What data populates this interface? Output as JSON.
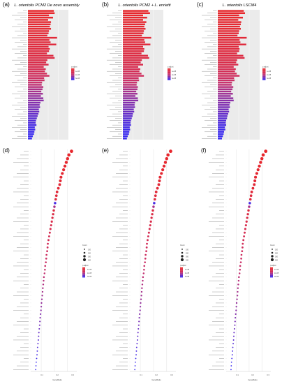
{
  "chart_data": [
    {
      "id": "a",
      "panel_label": "(a)",
      "type": "bar",
      "title": "L. orientolis PCM2 De novo assembly",
      "n_bars": 58,
      "values": [
        0.64,
        0.66,
        0.52,
        0.62,
        0.5,
        0.57,
        0.56,
        0.54,
        0.57,
        0.52,
        0.51,
        0.48,
        0.72,
        0.53,
        0.56,
        0.7,
        0.51,
        0.54,
        0.52,
        0.47,
        0.63,
        0.66,
        0.48,
        0.45,
        0.51,
        0.39,
        0.44,
        0.42,
        0.47,
        0.53,
        0.4,
        0.41,
        0.35,
        0.34,
        0.38,
        0.36,
        0.33,
        0.37,
        0.32,
        0.38,
        0.39,
        0.31,
        0.29,
        0.3,
        0.27,
        0.28,
        0.26,
        0.24,
        0.22,
        0.2,
        0.19,
        0.21,
        0.17,
        0.18,
        0.16,
        0.15,
        0.12,
        0.1
      ],
      "padj_rank": [
        0,
        0.01,
        0.02,
        0.02,
        0.03,
        0.04,
        0.05,
        0.05,
        0.06,
        0.07,
        0.08,
        0.09,
        0.1,
        0.11,
        0.12,
        0.13,
        0.14,
        0.15,
        0.16,
        0.17,
        0.18,
        0.2,
        0.22,
        0.24,
        0.26,
        0.28,
        0.31,
        0.34,
        0.37,
        0.4,
        0.43,
        0.46,
        0.5,
        0.53,
        0.56,
        0.6,
        0.62,
        0.65,
        0.68,
        0.7,
        0.72,
        0.74,
        0.76,
        0.78,
        0.8,
        0.82,
        0.85,
        0.87,
        0.89,
        0.91,
        0.93,
        0.95,
        0.97,
        0.98,
        0.99,
        1,
        1,
        1
      ],
      "legend_title": "p.adjust",
      "legend_ticks": [
        "1e-08",
        "2e-08",
        "3e-08"
      ],
      "xlim": [
        0,
        1
      ]
    },
    {
      "id": "b",
      "panel_label": "(b)",
      "type": "bar",
      "title": "L. orientolis PCM2 + L. enrietti",
      "n_bars": 58,
      "values": [
        0.63,
        0.67,
        0.5,
        0.6,
        0.5,
        0.58,
        0.55,
        0.53,
        0.56,
        0.52,
        0.51,
        0.47,
        0.7,
        0.53,
        0.55,
        0.68,
        0.5,
        0.53,
        0.52,
        0.46,
        0.62,
        0.65,
        0.47,
        0.44,
        0.5,
        0.38,
        0.43,
        0.41,
        0.46,
        0.52,
        0.39,
        0.4,
        0.35,
        0.34,
        0.37,
        0.36,
        0.33,
        0.36,
        0.31,
        0.37,
        0.38,
        0.3,
        0.29,
        0.3,
        0.27,
        0.28,
        0.25,
        0.24,
        0.22,
        0.2,
        0.19,
        0.2,
        0.17,
        0.18,
        0.16,
        0.15,
        0.12,
        0.1
      ],
      "padj_rank": [
        0,
        0.01,
        0.02,
        0.02,
        0.03,
        0.04,
        0.05,
        0.05,
        0.06,
        0.07,
        0.08,
        0.09,
        0.1,
        0.11,
        0.12,
        0.13,
        0.14,
        0.15,
        0.16,
        0.17,
        0.18,
        0.2,
        0.22,
        0.24,
        0.26,
        0.28,
        0.31,
        0.34,
        0.37,
        0.4,
        0.43,
        0.46,
        0.5,
        0.53,
        0.56,
        0.6,
        0.62,
        0.65,
        0.68,
        0.7,
        0.72,
        0.74,
        0.76,
        0.78,
        0.8,
        0.82,
        0.85,
        0.87,
        0.89,
        0.91,
        0.93,
        0.95,
        0.97,
        0.98,
        0.99,
        1,
        1,
        1
      ],
      "legend_title": "p.adjust",
      "legend_ticks": [
        "1e-08",
        "2e-08",
        "3e-08"
      ],
      "xlim": [
        0,
        1
      ]
    },
    {
      "id": "c",
      "panel_label": "(c)",
      "type": "bar",
      "title": "L. orientolis LSCM4",
      "n_bars": 58,
      "values": [
        0.62,
        0.65,
        0.51,
        0.6,
        0.49,
        0.56,
        0.55,
        0.53,
        0.55,
        0.51,
        0.5,
        0.47,
        0.69,
        0.52,
        0.54,
        0.68,
        0.5,
        0.52,
        0.51,
        0.46,
        0.61,
        0.64,
        0.46,
        0.44,
        0.49,
        0.38,
        0.43,
        0.41,
        0.45,
        0.52,
        0.39,
        0.4,
        0.34,
        0.33,
        0.37,
        0.35,
        0.32,
        0.36,
        0.31,
        0.37,
        0.38,
        0.3,
        0.28,
        0.29,
        0.26,
        0.27,
        0.25,
        0.23,
        0.22,
        0.2,
        0.19,
        0.2,
        0.17,
        0.18,
        0.15,
        0.14,
        0.12,
        0.1
      ],
      "padj_rank": [
        0,
        0.01,
        0.02,
        0.02,
        0.03,
        0.04,
        0.05,
        0.05,
        0.06,
        0.07,
        0.08,
        0.09,
        0.1,
        0.11,
        0.12,
        0.13,
        0.14,
        0.15,
        0.16,
        0.17,
        0.18,
        0.2,
        0.22,
        0.24,
        0.26,
        0.28,
        0.31,
        0.34,
        0.37,
        0.4,
        0.43,
        0.46,
        0.5,
        0.53,
        0.56,
        0.6,
        0.62,
        0.65,
        0.68,
        0.7,
        0.72,
        0.74,
        0.76,
        0.78,
        0.8,
        0.82,
        0.85,
        0.87,
        0.89,
        0.91,
        0.93,
        0.95,
        0.97,
        0.98,
        0.99,
        1,
        1,
        1
      ],
      "legend_title": "p.adjust",
      "legend_ticks": [
        "1e-08",
        "2e-08",
        "3e-08"
      ],
      "xlim": [
        0,
        1
      ]
    },
    {
      "id": "d",
      "panel_label": "(d)",
      "type": "scatter",
      "n_points": 60,
      "xlabel": "GeneRatio",
      "xticks": [
        0.1,
        0.2,
        0.3
      ],
      "xlim": [
        0.02,
        0.37
      ],
      "x": [
        0.33,
        0.31,
        0.3,
        0.29,
        0.28,
        0.27,
        0.26,
        0.25,
        0.245,
        0.24,
        0.23,
        0.22,
        0.215,
        0.21,
        0.205,
        0.2,
        0.195,
        0.19,
        0.185,
        0.18,
        0.175,
        0.17,
        0.165,
        0.16,
        0.155,
        0.15,
        0.148,
        0.145,
        0.14,
        0.138,
        0.135,
        0.13,
        0.128,
        0.125,
        0.12,
        0.118,
        0.115,
        0.112,
        0.11,
        0.108,
        0.105,
        0.102,
        0.1,
        0.098,
        0.095,
        0.092,
        0.09,
        0.088,
        0.085,
        0.082,
        0.08,
        0.078,
        0.075,
        0.072,
        0.07,
        0.068,
        0.065,
        0.062,
        0.06,
        0.058
      ],
      "padj_rank": [
        0.02,
        0.02,
        0.03,
        0.03,
        0.04,
        0.05,
        0.06,
        0.07,
        0.08,
        0.1,
        0.1,
        0.12,
        0.14,
        0.15,
        0.95,
        0.6,
        0.18,
        0.2,
        0.22,
        0.24,
        0.26,
        0.28,
        0.3,
        0.32,
        0.34,
        0.36,
        0.38,
        0.4,
        0.42,
        0.44,
        0.46,
        0.48,
        0.5,
        0.52,
        0.54,
        0.56,
        0.58,
        0.6,
        0.62,
        0.64,
        0.66,
        0.68,
        0.7,
        0.72,
        0.74,
        0.76,
        0.78,
        0.8,
        0.82,
        0.84,
        0.86,
        0.88,
        0.9,
        0.92,
        0.94,
        0.96,
        0.98,
        1,
        1,
        1
      ],
      "count_rank": [
        1,
        0.95,
        0.9,
        0.88,
        0.85,
        0.82,
        0.8,
        0.78,
        0.75,
        0.72,
        0.7,
        0.68,
        0.65,
        0.62,
        0.6,
        0.58,
        0.56,
        0.54,
        0.52,
        0.5,
        0.48,
        0.46,
        0.44,
        0.42,
        0.4,
        0.38,
        0.37,
        0.36,
        0.35,
        0.34,
        0.33,
        0.32,
        0.31,
        0.3,
        0.29,
        0.28,
        0.27,
        0.26,
        0.25,
        0.24,
        0.23,
        0.22,
        0.21,
        0.2,
        0.19,
        0.18,
        0.17,
        0.16,
        0.15,
        0.14,
        0.13,
        0.12,
        0.11,
        0.1,
        0.09,
        0.08,
        0.07,
        0.06,
        0.05,
        0.04
      ],
      "size_legend_title": "Count",
      "size_legend_ticks": [
        "100",
        "200",
        "300",
        "400"
      ],
      "color_legend_title": "p.adjust",
      "color_legend_ticks": [
        "1e-08",
        "2e-08",
        "3e-08"
      ]
    },
    {
      "id": "e",
      "panel_label": "(e)",
      "type": "scatter",
      "n_points": 60,
      "xlabel": "GeneRatio",
      "xticks": [
        0.1,
        0.2,
        0.3
      ],
      "xlim": [
        0.02,
        0.37
      ],
      "x": [
        0.33,
        0.31,
        0.3,
        0.29,
        0.28,
        0.27,
        0.26,
        0.25,
        0.245,
        0.24,
        0.23,
        0.22,
        0.215,
        0.21,
        0.205,
        0.2,
        0.195,
        0.19,
        0.185,
        0.18,
        0.175,
        0.17,
        0.165,
        0.16,
        0.155,
        0.15,
        0.148,
        0.145,
        0.14,
        0.138,
        0.135,
        0.13,
        0.128,
        0.125,
        0.12,
        0.118,
        0.115,
        0.112,
        0.11,
        0.108,
        0.105,
        0.102,
        0.1,
        0.098,
        0.095,
        0.092,
        0.09,
        0.088,
        0.085,
        0.082,
        0.08,
        0.078,
        0.075,
        0.072,
        0.07,
        0.068,
        0.065,
        0.062,
        0.06,
        0.058
      ],
      "padj_rank": [
        0.02,
        0.02,
        0.03,
        0.03,
        0.04,
        0.05,
        0.06,
        0.07,
        0.08,
        0.1,
        0.1,
        0.12,
        0.14,
        0.15,
        0.95,
        0.6,
        0.18,
        0.2,
        0.22,
        0.24,
        0.26,
        0.28,
        0.3,
        0.32,
        0.34,
        0.36,
        0.38,
        0.4,
        0.42,
        0.44,
        0.46,
        0.48,
        0.5,
        0.52,
        0.54,
        0.56,
        0.58,
        0.6,
        0.62,
        0.64,
        0.66,
        0.68,
        0.7,
        0.72,
        0.74,
        0.76,
        0.78,
        0.8,
        0.82,
        0.84,
        0.86,
        0.88,
        0.9,
        0.92,
        0.94,
        0.96,
        0.98,
        1,
        1,
        1
      ],
      "count_rank": [
        1,
        0.95,
        0.9,
        0.88,
        0.85,
        0.82,
        0.8,
        0.78,
        0.75,
        0.72,
        0.7,
        0.68,
        0.65,
        0.62,
        0.6,
        0.58,
        0.56,
        0.54,
        0.52,
        0.5,
        0.48,
        0.46,
        0.44,
        0.42,
        0.4,
        0.38,
        0.37,
        0.36,
        0.35,
        0.34,
        0.33,
        0.32,
        0.31,
        0.3,
        0.29,
        0.28,
        0.27,
        0.26,
        0.25,
        0.24,
        0.23,
        0.22,
        0.21,
        0.2,
        0.19,
        0.18,
        0.17,
        0.16,
        0.15,
        0.14,
        0.13,
        0.12,
        0.11,
        0.1,
        0.09,
        0.08,
        0.07,
        0.06,
        0.05,
        0.04
      ],
      "size_legend_title": "Count",
      "size_legend_ticks": [
        "100",
        "200",
        "300",
        "400"
      ],
      "color_legend_title": "p.adjust",
      "color_legend_ticks": [
        "1e-08",
        "2e-08",
        "3e-08"
      ]
    },
    {
      "id": "f",
      "panel_label": "(f)",
      "type": "scatter",
      "n_points": 60,
      "xlabel": "GeneRatio",
      "xticks": [
        0.1,
        0.2,
        0.3
      ],
      "xlim": [
        0.02,
        0.37
      ],
      "x": [
        0.33,
        0.31,
        0.3,
        0.29,
        0.28,
        0.27,
        0.26,
        0.25,
        0.245,
        0.24,
        0.23,
        0.22,
        0.215,
        0.21,
        0.205,
        0.2,
        0.195,
        0.19,
        0.185,
        0.18,
        0.175,
        0.17,
        0.165,
        0.16,
        0.155,
        0.15,
        0.148,
        0.145,
        0.14,
        0.138,
        0.135,
        0.13,
        0.128,
        0.125,
        0.12,
        0.118,
        0.115,
        0.112,
        0.11,
        0.108,
        0.105,
        0.102,
        0.1,
        0.098,
        0.095,
        0.092,
        0.09,
        0.088,
        0.085,
        0.082,
        0.08,
        0.078,
        0.075,
        0.072,
        0.07,
        0.068,
        0.065,
        0.062,
        0.06,
        0.058
      ],
      "padj_rank": [
        0.02,
        0.02,
        0.03,
        0.03,
        0.04,
        0.05,
        0.06,
        0.07,
        0.08,
        0.1,
        0.1,
        0.12,
        0.14,
        0.15,
        0.95,
        0.6,
        0.18,
        0.2,
        0.22,
        0.24,
        0.26,
        0.28,
        0.3,
        0.32,
        0.34,
        0.36,
        0.38,
        0.4,
        0.42,
        0.44,
        0.46,
        0.48,
        0.5,
        0.52,
        0.54,
        0.56,
        0.58,
        0.6,
        0.62,
        0.64,
        0.66,
        0.68,
        0.7,
        0.72,
        0.74,
        0.76,
        0.78,
        0.8,
        0.82,
        0.84,
        0.86,
        0.88,
        0.9,
        0.92,
        0.94,
        0.96,
        0.98,
        1,
        1,
        1
      ],
      "count_rank": [
        1,
        0.95,
        0.9,
        0.88,
        0.85,
        0.82,
        0.8,
        0.78,
        0.75,
        0.72,
        0.7,
        0.68,
        0.65,
        0.62,
        0.6,
        0.58,
        0.56,
        0.54,
        0.52,
        0.5,
        0.48,
        0.46,
        0.44,
        0.42,
        0.4,
        0.38,
        0.37,
        0.36,
        0.35,
        0.34,
        0.33,
        0.32,
        0.31,
        0.3,
        0.29,
        0.28,
        0.27,
        0.26,
        0.25,
        0.24,
        0.23,
        0.22,
        0.21,
        0.2,
        0.19,
        0.18,
        0.17,
        0.16,
        0.15,
        0.14,
        0.13,
        0.12,
        0.11,
        0.1,
        0.09,
        0.08,
        0.07,
        0.06,
        0.05,
        0.04
      ],
      "size_legend_title": "Count",
      "size_legend_ticks": [
        "100",
        "200",
        "300",
        "400"
      ],
      "color_legend_title": "p.adjust",
      "color_legend_ticks": [
        "1e-08",
        "2e-08",
        "3e-08"
      ]
    }
  ],
  "colors": {
    "high_significance": "#e8262a",
    "mid_significance": "#c9336d",
    "low_significance": "#3a2bf0",
    "panel_background": "#ebebeb",
    "grid": "#ffffff",
    "label_line": "#9a9a9a"
  }
}
